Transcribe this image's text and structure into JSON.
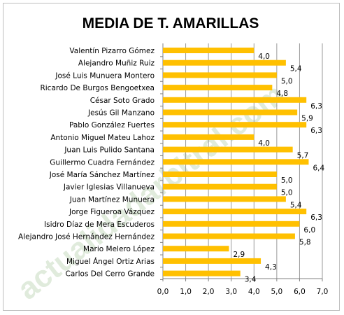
{
  "watermark": "actualidadarbitral.com",
  "chart_data": {
    "type": "bar",
    "orientation": "horizontal",
    "title": "MEDIA DE T. AMARILLAS",
    "xlim": [
      0,
      7
    ],
    "x_ticks": [
      "0,0",
      "1,0",
      "2,0",
      "3,0",
      "4,0",
      "5,0",
      "6,0",
      "7,0"
    ],
    "grid": "vertical",
    "bar_color": "#FFC000",
    "categories": [
      "Valentín Pizarro Gómez",
      "Alejandro Muñiz Ruiz",
      "José Luis Munuera Montero",
      "Ricardo De Burgos Bengoetxea",
      "César Soto Grado",
      "Jesús Gil Manzano",
      "Pablo González Fuertes",
      "Antonio Miguel Mateu Lahoz",
      "Juan Luis Pulido Santana",
      "Guillermo Cuadra Fernández",
      "José María Sánchez Martínez",
      "Javier Iglesias Villanueva",
      "Juan Martínez Munuera",
      "Jorge Figueroa Vázquez",
      "Isidro Díaz de Mera Escuderos",
      "Alejandro José Hernández Hernández",
      "Mario Melero López",
      "Miguel Ángel Ortiz Arias",
      "Carlos Del Cerro Grande"
    ],
    "values": [
      4.0,
      5.4,
      5.0,
      4.8,
      6.3,
      5.9,
      6.3,
      4.0,
      5.7,
      6.4,
      5.0,
      5.0,
      5.4,
      6.3,
      6.0,
      5.8,
      2.9,
      4.3,
      3.4
    ],
    "value_labels": [
      "4,0",
      "5,4",
      "5,0",
      "4,8",
      "6,3",
      "5,9",
      "6,3",
      "4,0",
      "5,7",
      "6,4",
      "5,0",
      "5,0",
      "5,4",
      "6,3",
      "6,0",
      "5,8",
      "2,9",
      "4,3",
      "3,4"
    ]
  }
}
